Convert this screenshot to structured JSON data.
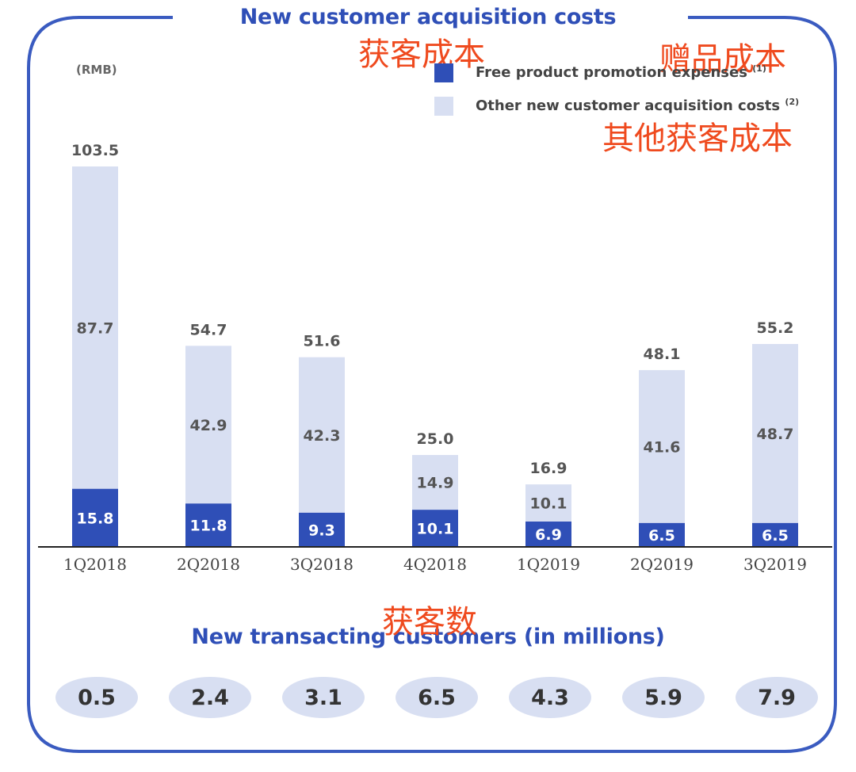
{
  "annotations": {
    "title_cn": "获客成本",
    "series1_cn": "赠品成本",
    "series2_cn": "其他获客成本",
    "customers_cn": "获客数"
  },
  "colors": {
    "frame": "#3a5bc0",
    "free_product": "#2f4fb7",
    "other_costs": "#d8dff2",
    "title": "#2f4fb7",
    "annotation": "#ef4a1e",
    "bubble": "#d8dff2"
  },
  "chart_data": [
    {
      "type": "bar",
      "stacked": true,
      "title": "New customer acquisition costs",
      "unit_label": "(RMB)",
      "categories": [
        "1Q2018",
        "2Q2018",
        "3Q2018",
        "4Q2018",
        "1Q2019",
        "2Q2019",
        "3Q2019"
      ],
      "series": [
        {
          "name": "Free product promotion expenses",
          "footnote": "(1)",
          "values": [
            15.8,
            11.8,
            9.3,
            10.1,
            6.9,
            6.5,
            6.5
          ]
        },
        {
          "name": "Other new customer acquisition costs",
          "footnote": "(2)",
          "values": [
            87.7,
            42.9,
            42.3,
            14.9,
            10.1,
            41.6,
            48.7
          ]
        }
      ],
      "totals": [
        103.5,
        54.7,
        51.6,
        25.0,
        16.9,
        48.1,
        55.2
      ],
      "ylim": [
        0,
        105
      ],
      "grid": false,
      "legend_position": "top-right"
    },
    {
      "type": "table",
      "title": "New transacting customers (in millions)",
      "categories": [
        "1Q2018",
        "2Q2018",
        "3Q2018",
        "4Q2018",
        "1Q2019",
        "2Q2019",
        "3Q2019"
      ],
      "values": [
        "0.5",
        "2.4",
        "3.1",
        "6.5",
        "4.3",
        "5.9",
        "7.9"
      ]
    }
  ]
}
